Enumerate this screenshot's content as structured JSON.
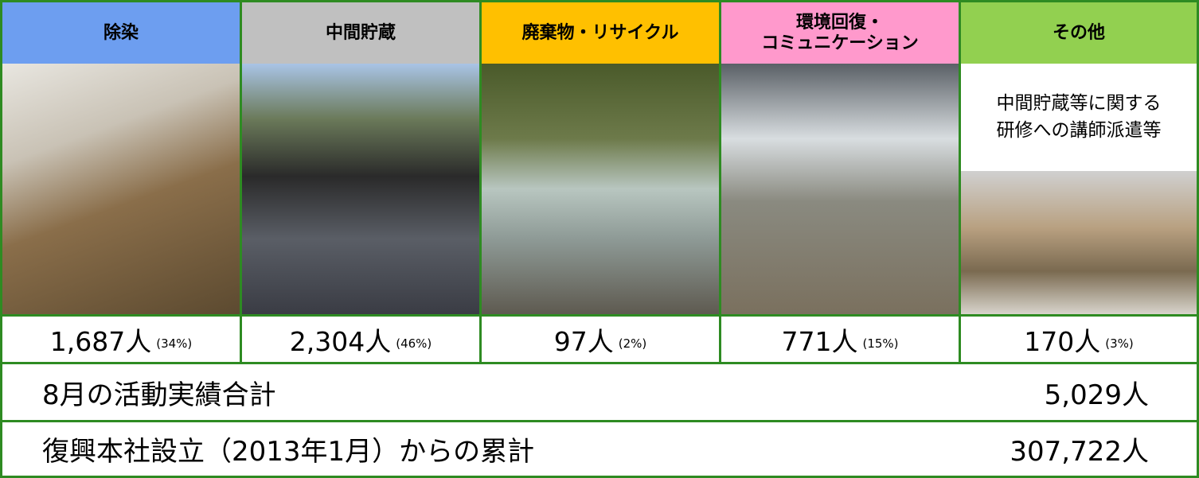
{
  "columns": [
    {
      "header": "除染",
      "count": "1,687人",
      "share": "(34%)"
    },
    {
      "header": "中間貯蔵",
      "count": "2,304人",
      "share": "(46%)"
    },
    {
      "header": "廃棄物・リサイクル",
      "count": "97人",
      "share": "(2%)"
    },
    {
      "header": "環境回復・\nコミュニケーション",
      "count": "771人",
      "share": "(15%)"
    },
    {
      "header": "その他",
      "note": "中間貯蔵等に関する\n研修への講師派遣等",
      "count": "170人",
      "share": "(3%)"
    }
  ],
  "totals": [
    {
      "label": "8月の活動実績合計",
      "value": "5,029人"
    },
    {
      "label": "復興本社設立（2013年1月）からの累計",
      "value": "307,722人"
    }
  ]
}
